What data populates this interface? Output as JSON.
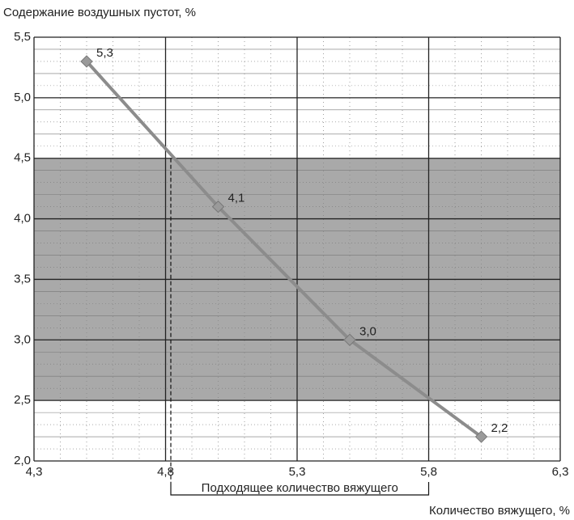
{
  "chart_data": {
    "type": "line",
    "ylabel": "Содержание воздушных пустот, %",
    "xlabel": "Количество вяжущего, %",
    "x": [
      4.5,
      5.0,
      5.5,
      6.0
    ],
    "values": [
      5.3,
      4.1,
      3.0,
      2.2
    ],
    "value_labels": [
      "5,3",
      "4,1",
      "3,0",
      "2,2"
    ],
    "color": "#8c8c8c",
    "xlim": [
      4.3,
      6.3
    ],
    "xticks": [
      {
        "value": 4.3,
        "label": "4,3"
      },
      {
        "value": 4.8,
        "label": "4,8"
      },
      {
        "value": 5.3,
        "label": "5,3"
      },
      {
        "value": 5.8,
        "label": "5,8"
      },
      {
        "value": 6.3,
        "label": "6,3"
      }
    ],
    "ylim": [
      2.0,
      5.5
    ],
    "yticks": [
      {
        "value": 2.0,
        "label": "2,0"
      },
      {
        "value": 2.5,
        "label": "2,5"
      },
      {
        "value": 3.0,
        "label": "3,0"
      },
      {
        "value": 3.5,
        "label": "3,5"
      },
      {
        "value": 4.0,
        "label": "4,0"
      },
      {
        "value": 4.5,
        "label": "4,5"
      },
      {
        "value": 5.0,
        "label": "5,0"
      },
      {
        "value": 5.5,
        "label": "5,5"
      }
    ],
    "shaded_range": [
      2.5,
      4.5
    ],
    "optimal_range": {
      "label": "Подходящее количество вяжущего",
      "xlim": [
        4.82,
        5.8
      ]
    },
    "grid": true
  }
}
